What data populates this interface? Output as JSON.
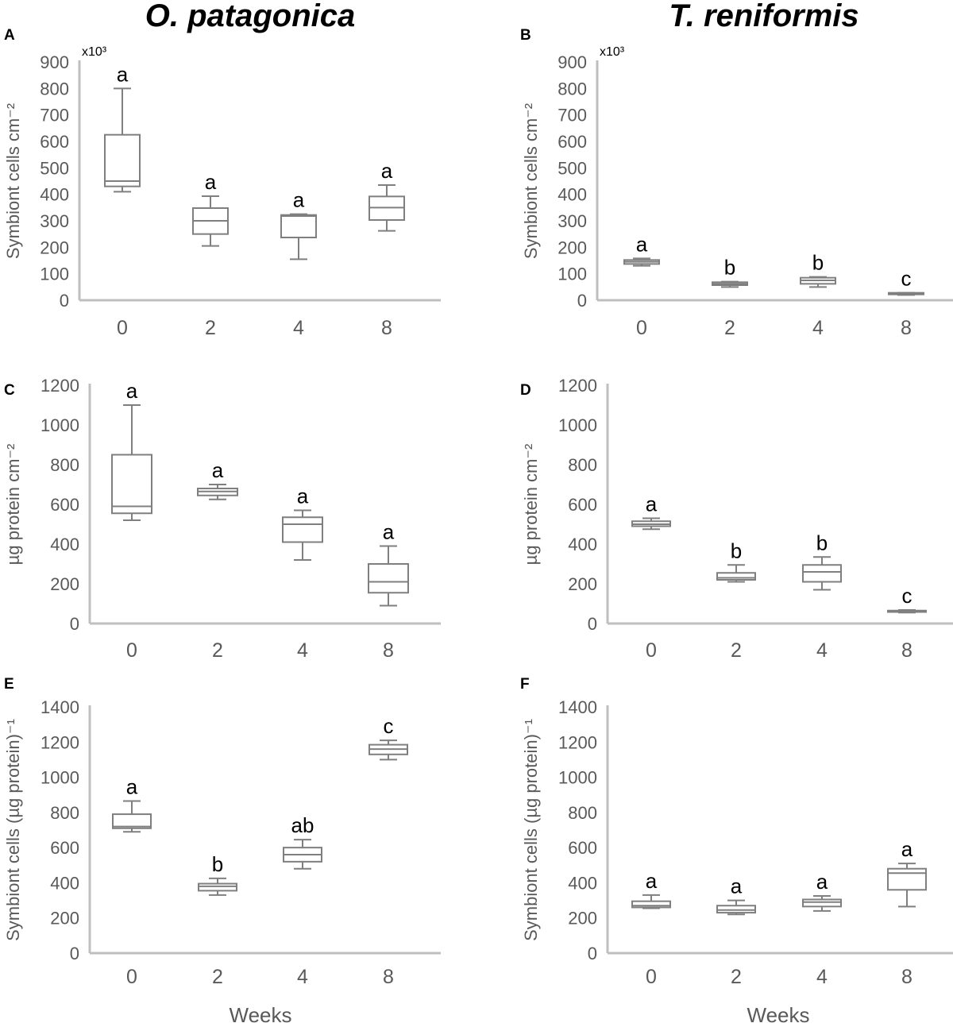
{
  "chart_data": {
    "type": "box",
    "column_titles": [
      "O. patagonica",
      "T. reniformis"
    ],
    "xlabel": "Weeks",
    "panels": [
      {
        "label": "A",
        "ylabel": "Symbiont cells cm⁻²",
        "multiplier": "x10³",
        "ylim": [
          0,
          900
        ],
        "ystep": 100,
        "categories": [
          "0",
          "2",
          "4",
          "8"
        ],
        "boxes": [
          [
            410,
            430,
            450,
            625,
            800
          ],
          [
            205,
            250,
            300,
            348,
            393
          ],
          [
            155,
            237,
            318,
            322,
            325
          ],
          [
            262,
            303,
            350,
            392,
            435
          ]
        ],
        "letters": [
          "a",
          "a",
          "a",
          "a"
        ]
      },
      {
        "label": "B",
        "ylabel": "Symbiont cells cm⁻²",
        "multiplier": "x10³",
        "ylim": [
          0,
          900
        ],
        "ystep": 100,
        "categories": [
          "0",
          "2",
          "4",
          "8"
        ],
        "boxes": [
          [
            130,
            137,
            145,
            152,
            158
          ],
          [
            50,
            57,
            62,
            68,
            70
          ],
          [
            50,
            62,
            75,
            85,
            88
          ],
          [
            20,
            22,
            25,
            28,
            28
          ]
        ],
        "letters": [
          "a",
          "b",
          "b",
          "c"
        ]
      },
      {
        "label": "C",
        "ylabel": "µg protein cm⁻²",
        "ylim": [
          0,
          1200
        ],
        "ystep": 200,
        "categories": [
          "0",
          "2",
          "4",
          "8"
        ],
        "boxes": [
          [
            520,
            555,
            590,
            850,
            1100
          ],
          [
            625,
            645,
            665,
            680,
            700
          ],
          [
            320,
            410,
            500,
            535,
            570
          ],
          [
            90,
            155,
            210,
            300,
            390
          ]
        ],
        "letters": [
          "a",
          "a",
          "a",
          "a"
        ]
      },
      {
        "label": "D",
        "ylabel": "µg protein cm⁻²",
        "ylim": [
          0,
          1200
        ],
        "ystep": 200,
        "categories": [
          "0",
          "2",
          "4",
          "8"
        ],
        "boxes": [
          [
            475,
            490,
            500,
            515,
            530
          ],
          [
            210,
            220,
            230,
            255,
            295
          ],
          [
            170,
            210,
            260,
            295,
            335
          ],
          [
            55,
            58,
            62,
            65,
            68
          ]
        ],
        "letters": [
          "a",
          "b",
          "b",
          "c"
        ]
      },
      {
        "label": "E",
        "ylabel": "Symbiont cells (µg protein)⁻¹",
        "ylim": [
          0,
          1400
        ],
        "ystep": 200,
        "categories": [
          "0",
          "2",
          "4",
          "8"
        ],
        "boxes": [
          [
            690,
            710,
            720,
            790,
            865
          ],
          [
            330,
            355,
            380,
            395,
            425
          ],
          [
            480,
            520,
            560,
            600,
            645
          ],
          [
            1100,
            1130,
            1160,
            1185,
            1210
          ]
        ],
        "letters": [
          "a",
          "b",
          "ab",
          "c"
        ]
      },
      {
        "label": "F",
        "ylabel": "Symbiont cells (µg protein)⁻¹",
        "ylim": [
          0,
          1400
        ],
        "ystep": 200,
        "categories": [
          "0",
          "2",
          "4",
          "8"
        ],
        "boxes": [
          [
            255,
            260,
            270,
            295,
            330
          ],
          [
            220,
            230,
            245,
            270,
            300
          ],
          [
            240,
            265,
            290,
            305,
            325
          ],
          [
            265,
            360,
            455,
            480,
            510
          ]
        ],
        "letters": [
          "a",
          "a",
          "a",
          "a"
        ]
      }
    ],
    "box_order": [
      "min",
      "q1",
      "median",
      "q3",
      "max"
    ],
    "colors": {
      "box": "#7f7f7f",
      "axis": "#bfbfbf",
      "tick_text": "#595959"
    }
  }
}
